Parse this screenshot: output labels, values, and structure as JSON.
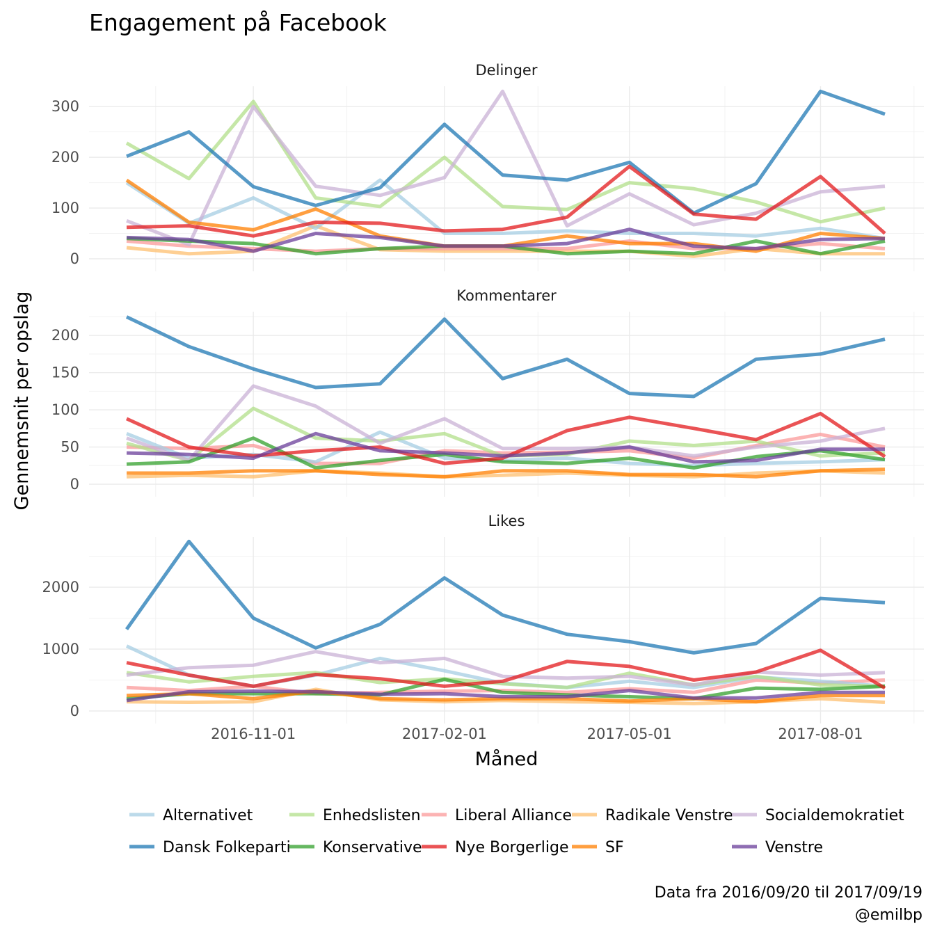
{
  "chart_data": {
    "type": "line",
    "title": "Engagement på Facebook",
    "xlabel": "Måned",
    "ylabel": "Gennemsnit per opslag",
    "caption": [
      "Data fra 2016/09/20 til 2017/09/19",
      "@emilbp"
    ],
    "x": [
      "2016-09-01",
      "2016-10-01",
      "2016-11-01",
      "2016-12-01",
      "2017-01-01",
      "2017-02-01",
      "2017-03-01",
      "2017-04-01",
      "2017-05-01",
      "2017-06-01",
      "2017-07-01",
      "2017-08-01",
      "2017-09-01"
    ],
    "xticks": [
      "2016-11-01",
      "2017-02-01",
      "2017-05-01",
      "2017-08-01"
    ],
    "legend": {
      "position": "bottom"
    },
    "grid": true,
    "series_styles": [
      {
        "name": "Alternativet",
        "color": "#a6cee3"
      },
      {
        "name": "Dansk Folkeparti",
        "color": "#1f78b4"
      },
      {
        "name": "Enhedslisten",
        "color": "#b2df8a"
      },
      {
        "name": "Konservative",
        "color": "#33a02c"
      },
      {
        "name": "Liberal Alliance",
        "color": "#fb9a99"
      },
      {
        "name": "Nye Borgerlige",
        "color": "#e31a1c"
      },
      {
        "name": "Radikale Venstre",
        "color": "#fdbf6f"
      },
      {
        "name": "SF",
        "color": "#ff7f00"
      },
      {
        "name": "Socialdemokratiet",
        "color": "#cab2d6"
      },
      {
        "name": "Venstre",
        "color": "#6a3d9a"
      }
    ],
    "legend_order": [
      "Alternativet",
      "Enhedslisten",
      "Liberal Alliance",
      "Radikale Venstre",
      "Socialdemokratiet",
      "Dansk Folkeparti",
      "Konservative",
      "Nye Borgerlige",
      "SF",
      "Venstre"
    ],
    "panels": [
      {
        "label": "Delinger",
        "ylim": [
          0,
          340
        ],
        "yticks": [
          0,
          100,
          200,
          300
        ],
        "series": [
          {
            "name": "Alternativet",
            "values": [
              150,
              70,
              120,
              60,
              155,
              50,
              50,
              55,
              50,
              50,
              45,
              60,
              40
            ]
          },
          {
            "name": "Dansk Folkeparti",
            "values": [
              202,
              250,
              142,
              105,
              140,
              265,
              165,
              155,
              190,
              90,
              148,
              330,
              285
            ]
          },
          {
            "name": "Enhedslisten",
            "values": [
              228,
              158,
              310,
              120,
              103,
              200,
              103,
              97,
              150,
              138,
              112,
              73,
              100
            ]
          },
          {
            "name": "Konservative",
            "values": [
              40,
              35,
              30,
              10,
              20,
              25,
              25,
              10,
              15,
              10,
              35,
              10,
              35
            ]
          },
          {
            "name": "Liberal Alliance",
            "values": [
              35,
              25,
              20,
              15,
              20,
              20,
              20,
              20,
              35,
              20,
              20,
              30,
              20
            ]
          },
          {
            "name": "Nye Borgerlige",
            "values": [
              62,
              65,
              45,
              72,
              70,
              55,
              58,
              82,
              182,
              88,
              78,
              162,
              50
            ]
          },
          {
            "name": "Radikale Venstre",
            "values": [
              22,
              10,
              15,
              65,
              18,
              15,
              15,
              15,
              15,
              5,
              20,
              10,
              10
            ]
          },
          {
            "name": "SF",
            "values": [
              155,
              72,
              57,
              98,
              45,
              25,
              25,
              45,
              30,
              30,
              15,
              50,
              40
            ]
          },
          {
            "name": "Socialdemokratiet",
            "values": [
              75,
              28,
              300,
              143,
              125,
              160,
              330,
              65,
              128,
              67,
              90,
              132,
              143
            ]
          },
          {
            "name": "Venstre",
            "values": [
              42,
              38,
              15,
              50,
              42,
              25,
              25,
              30,
              58,
              25,
              20,
              38,
              40
            ]
          }
        ]
      },
      {
        "label": "Kommentarer",
        "ylim": [
          0,
          232
        ],
        "yticks": [
          0,
          50,
          100,
          150,
          200
        ],
        "series": [
          {
            "name": "Alternativet",
            "values": [
              68,
              35,
              40,
              30,
              70,
              35,
              32,
              35,
              28,
              25,
              28,
              30,
              33
            ]
          },
          {
            "name": "Dansk Folkeparti",
            "values": [
              225,
              185,
              155,
              130,
              135,
              222,
              142,
              168,
              122,
              118,
              168,
              175,
              195
            ]
          },
          {
            "name": "Enhedslisten",
            "values": [
              55,
              32,
              102,
              62,
              58,
              68,
              38,
              40,
              58,
              52,
              58,
              38,
              42
            ]
          },
          {
            "name": "Konservative",
            "values": [
              27,
              30,
              62,
              22,
              32,
              40,
              30,
              28,
              35,
              22,
              37,
              45,
              33
            ]
          },
          {
            "name": "Liberal Alliance",
            "values": [
              50,
              48,
              52,
              28,
              28,
              45,
              42,
              43,
              45,
              35,
              52,
              67,
              50
            ]
          },
          {
            "name": "Nye Borgerlige",
            "values": [
              88,
              50,
              38,
              45,
              50,
              28,
              35,
              72,
              90,
              75,
              60,
              95,
              37
            ]
          },
          {
            "name": "Radikale Venstre",
            "values": [
              10,
              12,
              10,
              18,
              15,
              10,
              12,
              15,
              12,
              10,
              15,
              18,
              15
            ]
          },
          {
            "name": "SF",
            "values": [
              15,
              15,
              18,
              18,
              13,
              10,
              18,
              18,
              13,
              13,
              10,
              18,
              20
            ]
          },
          {
            "name": "Socialdemokratiet",
            "values": [
              62,
              32,
              132,
              105,
              55,
              88,
              48,
              48,
              50,
              38,
              50,
              58,
              75
            ]
          },
          {
            "name": "Venstre",
            "values": [
              42,
              40,
              35,
              68,
              45,
              42,
              38,
              42,
              50,
              30,
              32,
              47,
              47
            ]
          }
        ]
      },
      {
        "label": "Likes",
        "ylim": [
          0,
          2810
        ],
        "yticks": [
          0,
          1000,
          2000
        ],
        "series": [
          {
            "name": "Alternativet",
            "values": [
              1050,
              580,
              400,
              580,
              850,
              650,
              450,
              380,
              480,
              380,
              550,
              480,
              400
            ]
          },
          {
            "name": "Dansk Folkeparti",
            "values": [
              1320,
              2740,
              1500,
              1020,
              1400,
              2150,
              1550,
              1240,
              1120,
              940,
              1090,
              1820,
              1750
            ]
          },
          {
            "name": "Enhedslisten",
            "values": [
              620,
              470,
              560,
              620,
              460,
              520,
              440,
              380,
              610,
              420,
              560,
              420,
              400
            ]
          },
          {
            "name": "Konservative",
            "values": [
              200,
              280,
              280,
              280,
              260,
              510,
              300,
              260,
              230,
              200,
              370,
              350,
              400
            ]
          },
          {
            "name": "Liberal Alliance",
            "values": [
              380,
              330,
              400,
              280,
              300,
              320,
              330,
              300,
              360,
              300,
              500,
              450,
              500
            ]
          },
          {
            "name": "Nye Borgerlige",
            "values": [
              780,
              580,
              400,
              590,
              520,
              400,
              480,
              800,
              720,
              500,
              630,
              980,
              370
            ]
          },
          {
            "name": "Radikale Venstre",
            "values": [
              150,
              140,
              150,
              350,
              180,
              150,
              170,
              150,
              140,
              120,
              150,
              200,
              140
            ]
          },
          {
            "name": "SF",
            "values": [
              250,
              280,
              200,
              320,
              200,
              180,
              200,
              200,
              160,
              200,
              150,
              250,
              250
            ]
          },
          {
            "name": "Socialdemokratiet",
            "values": [
              580,
              700,
              740,
              960,
              780,
              850,
              560,
              530,
              560,
              420,
              630,
              580,
              620
            ]
          },
          {
            "name": "Venstre",
            "values": [
              170,
              310,
              320,
              310,
              270,
              280,
              230,
              230,
              330,
              210,
              210,
              300,
              300
            ]
          }
        ]
      }
    ]
  }
}
